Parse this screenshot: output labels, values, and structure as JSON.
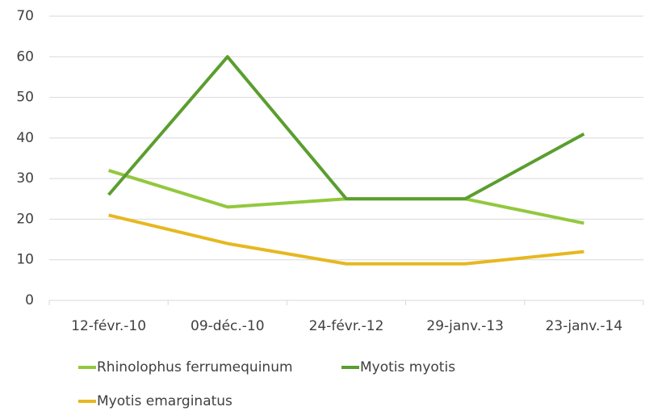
{
  "chart_data": {
    "type": "line",
    "categories": [
      "12-févr.-10",
      "09-déc.-10",
      "24-févr.-12",
      "29-janv.-13",
      "23-janv.-14"
    ],
    "series": [
      {
        "name": "Rhinolophus ferrumequinum",
        "color": "#92c83e",
        "values": [
          32,
          23,
          25,
          25,
          19
        ]
      },
      {
        "name": "Myotis myotis",
        "color": "#5a9e2f",
        "values": [
          26,
          60,
          25,
          25,
          41
        ]
      },
      {
        "name": "Myotis emarginatus",
        "color": "#e6b820",
        "values": [
          21,
          14,
          9,
          9,
          12
        ]
      }
    ],
    "ylim": [
      0,
      70
    ],
    "yticks": [
      0,
      10,
      20,
      30,
      40,
      50,
      60,
      70
    ],
    "grid": true
  }
}
